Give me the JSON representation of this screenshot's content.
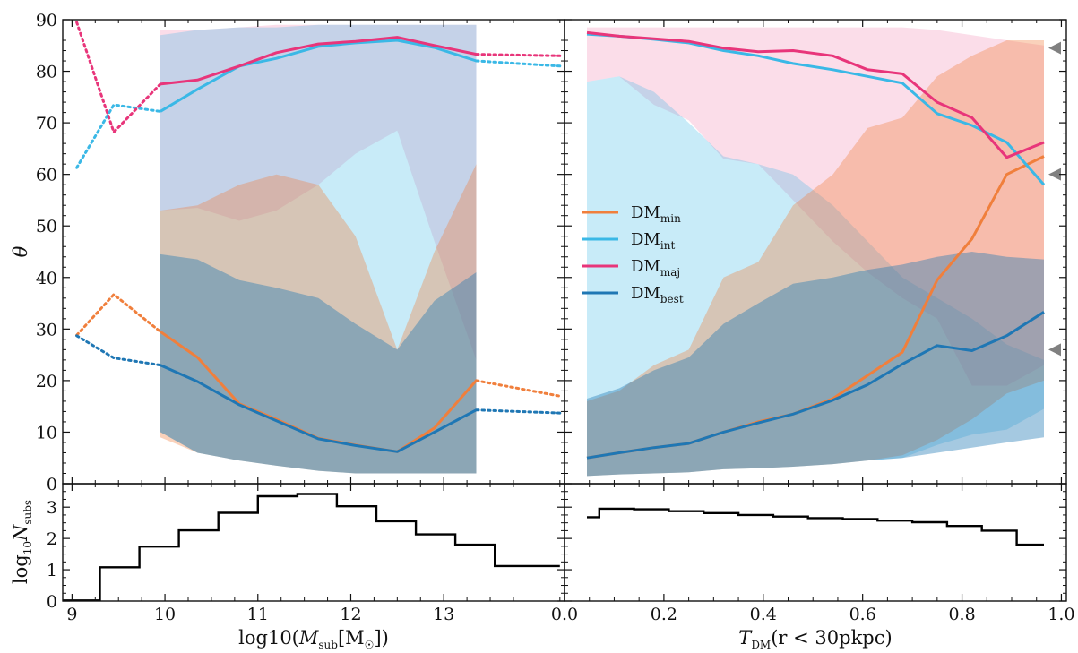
{
  "chart_data": [
    {
      "type": "line",
      "panel": "top-left",
      "xlabel_pre": "log10(",
      "xlabel_sym": "M",
      "xlabel_sub": "sub",
      "xlabel_post": "[M",
      "xlabel_post2": "])",
      "ylabel": "θ",
      "xlim": [
        8.9,
        14.3
      ],
      "ylim": [
        0,
        90
      ],
      "xticks": [
        "9",
        "10",
        "11",
        "12",
        "13"
      ],
      "xtick_values": [
        9,
        10,
        11,
        12,
        13
      ],
      "yticks": [
        "0",
        "10",
        "20",
        "30",
        "40",
        "50",
        "60",
        "70",
        "80",
        "90"
      ],
      "grid": false,
      "series": [
        {
          "name": "DMmin",
          "color": "#f07f3c",
          "solid_x": [
            9.95,
            10.35,
            10.8,
            11.2,
            11.65,
            12.05,
            12.5,
            12.9,
            13.35
          ],
          "solid_y": [
            29.5,
            24.5,
            15.5,
            12.5,
            8.8,
            7.5,
            6.2,
            10.8,
            20
          ],
          "dotted_left_x": [
            9.05,
            9.45,
            9.95
          ],
          "dotted_left_y": [
            28.8,
            36.7,
            29.5
          ],
          "dotted_right_x": [
            13.35,
            14.25
          ],
          "dotted_right_y": [
            20,
            17
          ],
          "band_x": [
            9.95,
            10.35,
            10.8,
            11.2,
            11.65,
            12.05,
            12.5,
            12.9,
            13.35
          ],
          "band_lo": [
            9,
            6,
            4.5,
            3.5,
            2.5,
            2,
            2,
            2,
            2
          ],
          "band_hi": [
            53,
            54,
            58,
            60,
            58,
            48,
            26,
            45,
            62
          ]
        },
        {
          "name": "DMint",
          "color": "#3ab8e6",
          "solid_x": [
            9.95,
            10.35,
            10.8,
            11.2,
            11.65,
            12.05,
            12.5,
            12.9,
            13.35
          ],
          "solid_y": [
            72.2,
            76.5,
            81,
            82.5,
            84.8,
            85.5,
            86,
            84.6,
            82
          ],
          "dotted_left_x": [
            9.05,
            9.45,
            9.95
          ],
          "dotted_left_y": [
            61.3,
            73.5,
            72.2
          ],
          "dotted_right_x": [
            13.35,
            14.25
          ],
          "dotted_right_y": [
            82,
            81
          ],
          "band_x": [
            9.95,
            10.35,
            10.8,
            11.2,
            11.65,
            12.05,
            12.5,
            12.9,
            13.35
          ],
          "band_lo": [
            10,
            6,
            4.5,
            3.5,
            2.5,
            2,
            2,
            2,
            2
          ],
          "band_hi": [
            87,
            88,
            88.5,
            88.5,
            89,
            89,
            89,
            89,
            89
          ]
        },
        {
          "name": "DMmaj",
          "color": "#e8357a",
          "solid_x": [
            9.95,
            10.35,
            10.8,
            11.2,
            11.65,
            12.05,
            12.5,
            12.9,
            13.35
          ],
          "solid_y": [
            77.5,
            78.3,
            81,
            83.6,
            85.3,
            85.8,
            86.6,
            85,
            83.3
          ],
          "dotted_left_x": [
            9.05,
            9.45,
            9.95
          ],
          "dotted_left_y": [
            89.5,
            68.2,
            77.5
          ],
          "dotted_right_x": [
            13.35,
            14.25
          ],
          "dotted_right_y": [
            83.3,
            83
          ],
          "band_x": [
            9.95,
            10.35,
            10.8,
            11.2,
            11.65,
            12.05,
            12.5,
            12.9,
            13.35
          ],
          "band_lo": [
            53,
            53.5,
            51,
            53,
            58,
            64,
            68.5,
            47,
            24
          ],
          "band_hi": [
            88,
            88,
            88.5,
            89,
            89,
            89,
            89,
            89,
            89
          ]
        },
        {
          "name": "DMbest",
          "color": "#1f77b4",
          "solid_x": [
            9.95,
            10.35,
            10.8,
            11.2,
            11.65,
            12.05,
            12.5,
            12.9,
            13.35
          ],
          "solid_y": [
            23,
            19.8,
            15.3,
            12.2,
            8.7,
            7.4,
            6.2,
            10,
            14.3
          ],
          "dotted_left_x": [
            9.05,
            9.45,
            9.95
          ],
          "dotted_left_y": [
            28.7,
            24.4,
            23
          ],
          "dotted_right_x": [
            13.35,
            14.25
          ],
          "dotted_right_y": [
            14.3,
            13.7
          ],
          "band_x": [
            9.95,
            10.35,
            10.8,
            11.2,
            11.65,
            12.05,
            12.5,
            12.9,
            13.35
          ],
          "band_lo": [
            10,
            6,
            4.5,
            3.5,
            2.5,
            2,
            2,
            2,
            2
          ],
          "band_hi": [
            44.5,
            43.5,
            39.5,
            38,
            36,
            31,
            26,
            35.5,
            41
          ]
        }
      ]
    },
    {
      "type": "line",
      "panel": "top-right",
      "xlabel_sym": "T",
      "xlabel_sub": "DM",
      "xlabel_post": "(r < 30pkpc)",
      "ylabel": "",
      "xlim": [
        0.0,
        1.01
      ],
      "ylim": [
        0,
        90
      ],
      "xticks": [
        "0.0",
        "0.2",
        "0.4",
        "0.6",
        "0.8",
        "1.0"
      ],
      "xtick_values": [
        0.0,
        0.2,
        0.4,
        0.6,
        0.8,
        1.0
      ],
      "grid": false,
      "arrow_markers_y": [
        84.5,
        60,
        26
      ],
      "series": [
        {
          "name": "DMmin",
          "color": "#f07f3c",
          "x": [
            0.045,
            0.11,
            0.18,
            0.25,
            0.32,
            0.39,
            0.46,
            0.54,
            0.61,
            0.68,
            0.75,
            0.82,
            0.89,
            0.965
          ],
          "y": [
            5,
            6,
            7,
            7.8,
            10,
            12,
            13.5,
            16.5,
            21,
            25.5,
            39.5,
            47.5,
            60,
            63.5
          ],
          "band_lo": [
            1.5,
            1.8,
            2,
            2.2,
            2.8,
            3,
            3.3,
            3.8,
            4.5,
            5.5,
            8.5,
            12.5,
            17.5,
            20
          ],
          "band_hi": [
            16,
            18,
            23,
            26,
            40,
            43,
            54,
            60,
            69,
            71,
            79,
            83,
            86,
            86
          ]
        },
        {
          "name": "DMint",
          "color": "#3ab8e6",
          "x": [
            0.045,
            0.11,
            0.18,
            0.25,
            0.32,
            0.39,
            0.46,
            0.54,
            0.61,
            0.68,
            0.75,
            0.82,
            0.89,
            0.965
          ],
          "y": [
            87.2,
            86.8,
            86.2,
            85.5,
            84,
            83,
            81.5,
            80.3,
            79,
            77.7,
            71.8,
            69.5,
            66.2,
            58
          ],
          "band_lo": [
            1.5,
            1.8,
            2,
            2.2,
            2.8,
            3,
            3.3,
            3.8,
            4.5,
            5,
            7.5,
            9.5,
            10.5,
            14.5
          ],
          "band_hi": [
            78,
            79,
            76,
            70,
            63.5,
            62,
            60,
            54,
            47,
            40,
            36,
            32,
            27,
            24
          ]
        },
        {
          "name": "DMmaj",
          "color": "#e8357a",
          "x": [
            0.045,
            0.11,
            0.18,
            0.25,
            0.32,
            0.39,
            0.46,
            0.54,
            0.61,
            0.68,
            0.75,
            0.82,
            0.89,
            0.965
          ],
          "y": [
            87.5,
            86.8,
            86.3,
            85.8,
            84.5,
            83.8,
            84,
            83,
            80.3,
            79.5,
            74,
            71,
            63.3,
            66.2
          ],
          "band_lo": [
            78,
            79,
            73.5,
            70.5,
            63,
            62,
            55,
            47,
            41,
            36,
            32,
            19,
            19,
            23
          ],
          "band_hi": [
            88.5,
            88.5,
            88.5,
            88.5,
            88.5,
            88.5,
            88.5,
            88.5,
            88.5,
            88.5,
            88,
            87,
            86,
            85
          ]
        },
        {
          "name": "DMbest",
          "color": "#1f77b4",
          "x": [
            0.045,
            0.11,
            0.18,
            0.25,
            0.32,
            0.39,
            0.46,
            0.54,
            0.61,
            0.68,
            0.75,
            0.82,
            0.89,
            0.965
          ],
          "y": [
            5,
            6,
            7,
            7.8,
            10,
            11.8,
            13.5,
            16.2,
            19.2,
            23.2,
            26.8,
            25.8,
            28.7,
            33.3
          ],
          "band_lo": [
            1.5,
            1.8,
            2,
            2.2,
            2.8,
            3,
            3.3,
            3.8,
            4.5,
            5,
            6,
            7,
            8,
            9
          ],
          "band_hi": [
            16.5,
            18.5,
            22,
            24.5,
            31,
            35,
            38.8,
            40,
            41.5,
            42.5,
            44,
            45,
            44,
            43.5
          ]
        }
      ]
    },
    {
      "type": "line",
      "panel": "bottom-left",
      "step": true,
      "ylabel_pre": "log",
      "ylabel_sub1": "10",
      "ylabel_sym": "N",
      "ylabel_sub2": "subs",
      "xlim": [
        8.9,
        14.3
      ],
      "ylim": [
        0,
        3.75
      ],
      "yticks": [
        "0",
        "1",
        "2",
        "3"
      ],
      "ytick_values": [
        0,
        1,
        2,
        3
      ],
      "series": [
        {
          "name": "",
          "color": "#000000",
          "edges": [
            8.9,
            9.3,
            9.725,
            10.15,
            10.575,
            11.0,
            11.425,
            11.85,
            12.275,
            12.7,
            13.125,
            13.55,
            13.975,
            14.25
          ],
          "values": [
            0.02,
            1.08,
            1.74,
            2.26,
            2.82,
            3.35,
            3.42,
            3.03,
            2.55,
            2.13,
            1.8,
            1.12,
            1.12
          ]
        }
      ]
    },
    {
      "type": "line",
      "panel": "bottom-right",
      "step": true,
      "xlim": [
        0.0,
        1.01
      ],
      "ylim": [
        0,
        3.75
      ],
      "series": [
        {
          "name": "",
          "color": "#000000",
          "edges": [
            0.045,
            0.07,
            0.14,
            0.21,
            0.28,
            0.35,
            0.42,
            0.49,
            0.56,
            0.63,
            0.7,
            0.77,
            0.84,
            0.91,
            0.965
          ],
          "values": [
            2.68,
            2.95,
            2.93,
            2.87,
            2.81,
            2.75,
            2.7,
            2.65,
            2.62,
            2.57,
            2.52,
            2.4,
            2.25,
            1.8
          ]
        }
      ]
    }
  ],
  "legend": {
    "placement": "middle-left of right panel",
    "entries": [
      {
        "base": "DM",
        "sub": "min",
        "color": "#f07f3c"
      },
      {
        "base": "DM",
        "sub": "int",
        "color": "#3ab8e6"
      },
      {
        "base": "DM",
        "sub": "maj",
        "color": "#e8357a"
      },
      {
        "base": "DM",
        "sub": "best",
        "color": "#1f77b4"
      }
    ]
  }
}
